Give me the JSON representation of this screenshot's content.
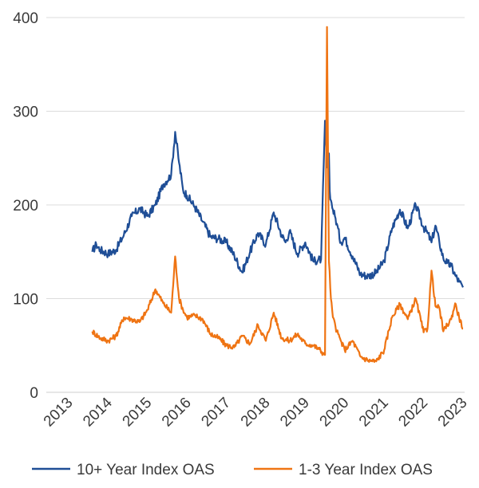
{
  "chart_data": {
    "type": "line",
    "title": "",
    "xlabel": "",
    "ylabel": "",
    "ylim": [
      0,
      400
    ],
    "xlim": [
      2013,
      2023
    ],
    "grid": "horizontal",
    "legend_position": "bottom",
    "y_ticks": [
      "0",
      "100",
      "200",
      "300",
      "400"
    ],
    "x_ticks": [
      "2013",
      "2014",
      "2015",
      "2016",
      "2017",
      "2018",
      "2019",
      "2020",
      "2021",
      "2022",
      "2023"
    ],
    "colors": {
      "series_10plus": "#1f4e96",
      "series_1to3": "#ef7413",
      "grid": "#dcdcdc",
      "text": "#3a3a3a"
    },
    "series": [
      {
        "name": "10+ Year Index OAS",
        "x": [
          2013.6,
          2013.7,
          2013.8,
          2014.0,
          2014.2,
          2014.4,
          2014.6,
          2014.8,
          2015.0,
          2015.2,
          2015.4,
          2015.6,
          2015.7,
          2015.8,
          2015.9,
          2016.0,
          2016.2,
          2016.4,
          2016.6,
          2016.8,
          2017.0,
          2017.2,
          2017.4,
          2017.6,
          2017.8,
          2018.0,
          2018.2,
          2018.4,
          2018.5,
          2018.6,
          2018.8,
          2019.0,
          2019.2,
          2019.4,
          2019.5,
          2019.55,
          2019.6,
          2019.62,
          2019.65,
          2019.7,
          2019.75,
          2019.8,
          2019.9,
          2020.0,
          2020.2,
          2020.4,
          2020.6,
          2020.8,
          2021.0,
          2021.2,
          2021.4,
          2021.6,
          2021.8,
          2022.0,
          2022.1,
          2022.2,
          2022.3,
          2022.4,
          2022.5,
          2022.6,
          2022.7,
          2022.8,
          2022.9,
          2023.0
        ],
        "values": [
          150,
          158,
          152,
          148,
          152,
          168,
          188,
          196,
          188,
          200,
          222,
          232,
          278,
          245,
          216,
          210,
          198,
          182,
          166,
          164,
          160,
          146,
          128,
          150,
          170,
          158,
          192,
          168,
          160,
          172,
          148,
          160,
          140,
          142,
          290,
          240,
          255,
          215,
          205,
          195,
          188,
          180,
          160,
          165,
          145,
          126,
          124,
          128,
          140,
          175,
          195,
          175,
          200,
          176,
          170,
          160,
          178,
          160,
          143,
          138,
          135,
          125,
          118,
          112
        ]
      },
      {
        "name": "1-3 Year Index OAS",
        "x": [
          2013.6,
          2013.8,
          2014.0,
          2014.2,
          2014.4,
          2014.6,
          2014.8,
          2015.0,
          2015.2,
          2015.4,
          2015.6,
          2015.7,
          2015.8,
          2015.9,
          2016.0,
          2016.2,
          2016.4,
          2016.6,
          2016.8,
          2017.0,
          2017.2,
          2017.4,
          2017.6,
          2017.8,
          2018.0,
          2018.2,
          2018.4,
          2018.6,
          2018.8,
          2019.0,
          2019.2,
          2019.35,
          2019.45,
          2019.5,
          2019.55,
          2019.6,
          2019.65,
          2019.7,
          2019.8,
          2019.9,
          2020.0,
          2020.2,
          2020.4,
          2020.6,
          2020.8,
          2021.0,
          2021.2,
          2021.4,
          2021.6,
          2021.8,
          2022.0,
          2022.1,
          2022.2,
          2022.3,
          2022.4,
          2022.5,
          2022.6,
          2022.7,
          2022.8,
          2022.9,
          2023.0
        ],
        "values": [
          65,
          58,
          55,
          60,
          80,
          78,
          75,
          88,
          110,
          95,
          85,
          145,
          100,
          88,
          80,
          82,
          78,
          62,
          58,
          50,
          48,
          60,
          52,
          72,
          55,
          85,
          58,
          55,
          62,
          52,
          50,
          46,
          42,
          40,
          390,
          140,
          100,
          80,
          65,
          55,
          45,
          55,
          38,
          34,
          33,
          45,
          80,
          94,
          78,
          100,
          64,
          68,
          130,
          92,
          90,
          65,
          72,
          78,
          95,
          80,
          68
        ]
      }
    ]
  }
}
